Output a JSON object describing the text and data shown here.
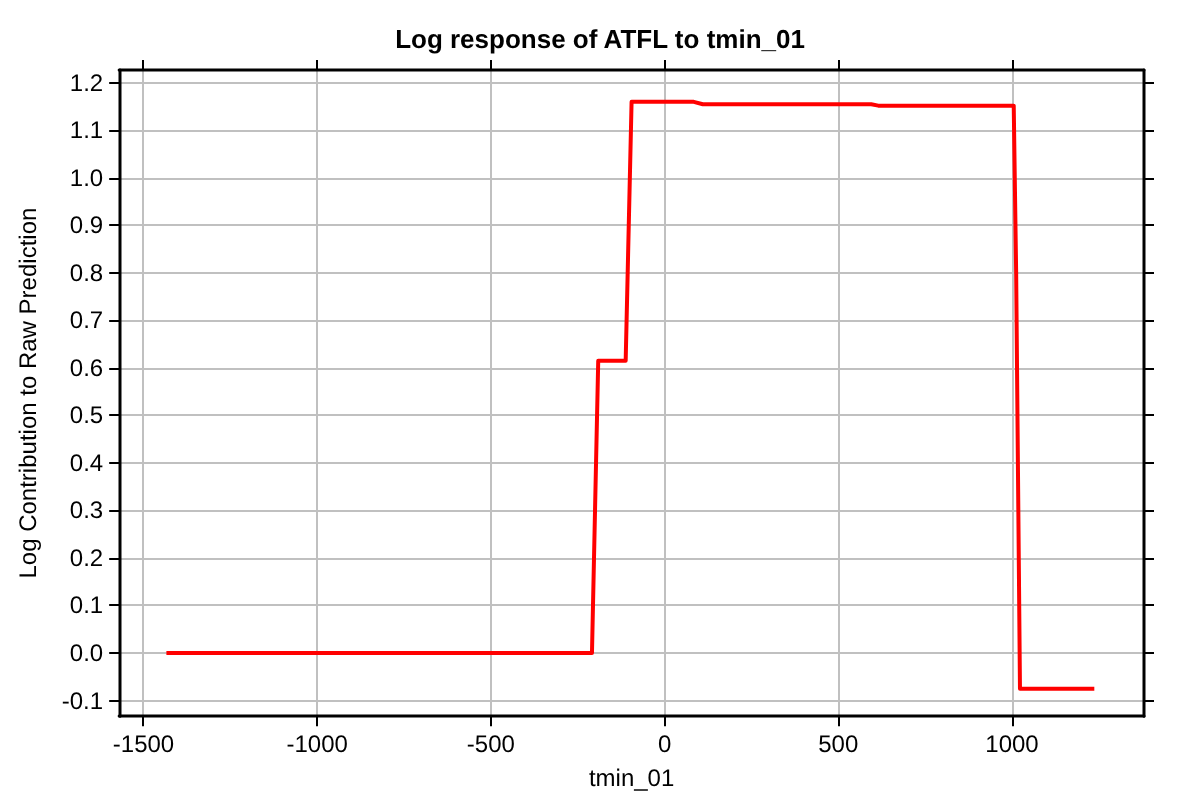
{
  "chart_data": {
    "type": "line",
    "title": "Log response of ATFL to tmin_01",
    "xlabel": "tmin_01",
    "ylabel": "Log Contribution to Raw Prediction",
    "series": [
      {
        "color": "#ff0000",
        "x": [
          -1434,
          -500,
          -209,
          -191,
          -112,
          -95,
          0,
          84,
          110,
          595,
          615,
          1005,
          1012,
          1023,
          1237
        ],
        "values": [
          0,
          0,
          0,
          0.615,
          0.615,
          1.16,
          1.16,
          1.16,
          1.155,
          1.155,
          1.152,
          1.152,
          0.8,
          -0.075,
          -0.075
        ]
      }
    ],
    "xlim": [
      -1570,
      1380
    ],
    "xticks": [
      -1500,
      -1000,
      -500,
      0,
      500,
      1000
    ],
    "ylim": [
      -0.133,
      1.227
    ],
    "yticks": [
      -0.1,
      {
        "value": 0,
        "label": "0.0"
      },
      0.1,
      0.2,
      0.3,
      0.4,
      0.5,
      0.6,
      0.7,
      0.8,
      0.9,
      {
        "value": 1,
        "label": "1.0"
      },
      1.1,
      1.2
    ],
    "grid": true,
    "marker": "none",
    "line_style": "solid"
  }
}
